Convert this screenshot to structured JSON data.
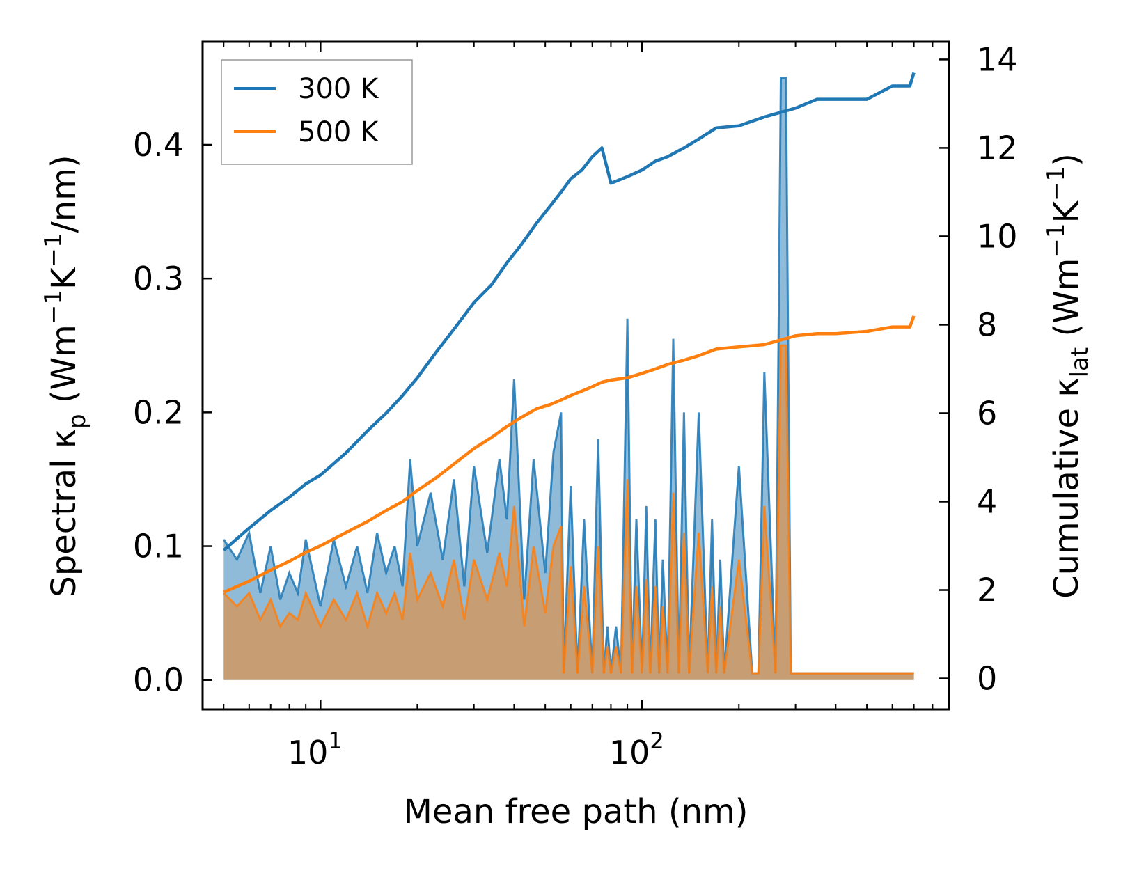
{
  "chart_data": {
    "type": "line+area",
    "title": "",
    "xlabel": "Mean free path (nm)",
    "ylabel_left": {
      "main": "Spectral κ",
      "sub": "p",
      "units_prefix": " (Wm",
      "sup1": "−1",
      "mid": "K",
      "sup2": "−1",
      "units_suffix": "/nm)"
    },
    "ylabel_right": {
      "main": "Cumulative κ",
      "sub": "lat",
      "units_prefix": " (Wm",
      "sup1": "−1",
      "mid": "K",
      "sup2": "−1",
      "units_suffix": ")"
    },
    "xscale": "log",
    "xlim": [
      4.3,
      900
    ],
    "ylim_left": [
      -0.022,
      0.477
    ],
    "ylim_right": [
      -0.7,
      14.4
    ],
    "x_ticks": [
      {
        "value": 10,
        "base": "10",
        "exp": "1"
      },
      {
        "value": 100,
        "base": "10",
        "exp": "2"
      }
    ],
    "y_left_ticks": [
      {
        "value": 0.0,
        "label": "0.0"
      },
      {
        "value": 0.1,
        "label": "0.1"
      },
      {
        "value": 0.2,
        "label": "0.2"
      },
      {
        "value": 0.3,
        "label": "0.3"
      },
      {
        "value": 0.4,
        "label": "0.4"
      }
    ],
    "y_right_ticks": [
      {
        "value": 0,
        "label": "0"
      },
      {
        "value": 2,
        "label": "2"
      },
      {
        "value": 4,
        "label": "4"
      },
      {
        "value": 6,
        "label": "6"
      },
      {
        "value": 8,
        "label": "8"
      },
      {
        "value": 10,
        "label": "10"
      },
      {
        "value": 12,
        "label": "12"
      },
      {
        "value": 14,
        "label": "14"
      }
    ],
    "legend": {
      "position": "upper-left",
      "entries": [
        {
          "label": "300 K",
          "color": "#1f77b4"
        },
        {
          "label": "500 K",
          "color": "#ff7f0e"
        }
      ]
    },
    "spectral": {
      "x": [
        5,
        5.5,
        6,
        6.5,
        7,
        7.5,
        8,
        8.5,
        9,
        10,
        11,
        12,
        13,
        14,
        15,
        16,
        17,
        18,
        19,
        20,
        22,
        24,
        26,
        28,
        30,
        33,
        36,
        38,
        40,
        43,
        46,
        50,
        53,
        56,
        57,
        60,
        63,
        66,
        70,
        73,
        76,
        78,
        80,
        83,
        86,
        90,
        93,
        96,
        100,
        103,
        106,
        110,
        113,
        116,
        120,
        125,
        130,
        135,
        140,
        150,
        160,
        165,
        170,
        175,
        180,
        200,
        220,
        230,
        240,
        260,
        270,
        280,
        290,
        300,
        320,
        340,
        360,
        500,
        560,
        600,
        680,
        700
      ],
      "series": [
        {
          "name": "300 K",
          "color": "#1f77b4",
          "values": [
            0.105,
            0.09,
            0.11,
            0.065,
            0.1,
            0.06,
            0.08,
            0.065,
            0.105,
            0.055,
            0.105,
            0.07,
            0.1,
            0.065,
            0.11,
            0.08,
            0.1,
            0.07,
            0.165,
            0.1,
            0.14,
            0.09,
            0.15,
            0.07,
            0.16,
            0.095,
            0.165,
            0.12,
            0.225,
            0.06,
            0.165,
            0.08,
            0.17,
            0.2,
            0.005,
            0.145,
            0.005,
            0.12,
            0.005,
            0.18,
            0.005,
            0.04,
            0.005,
            0.04,
            0.005,
            0.27,
            0.005,
            0.12,
            0.005,
            0.13,
            0.005,
            0.12,
            0.005,
            0.09,
            0.005,
            0.255,
            0.005,
            0.2,
            0.005,
            0.2,
            0.005,
            0.12,
            0.005,
            0.09,
            0.005,
            0.16,
            0.005,
            0.005,
            0.23,
            0.005,
            0.45,
            0.45,
            0.005,
            0.005,
            0.005,
            0.005,
            0.005,
            0.005,
            0.005,
            0.005,
            0.005,
            0.005
          ]
        },
        {
          "name": "500 K",
          "color": "#ff7f0e",
          "values": [
            0.065,
            0.055,
            0.065,
            0.045,
            0.06,
            0.04,
            0.05,
            0.045,
            0.065,
            0.04,
            0.06,
            0.045,
            0.065,
            0.04,
            0.065,
            0.05,
            0.065,
            0.045,
            0.095,
            0.06,
            0.08,
            0.055,
            0.09,
            0.045,
            0.09,
            0.06,
            0.095,
            0.07,
            0.13,
            0.04,
            0.1,
            0.05,
            0.1,
            0.115,
            0.005,
            0.085,
            0.005,
            0.07,
            0.005,
            0.1,
            0.005,
            0.025,
            0.005,
            0.025,
            0.005,
            0.15,
            0.005,
            0.07,
            0.005,
            0.075,
            0.005,
            0.07,
            0.005,
            0.055,
            0.005,
            0.14,
            0.005,
            0.11,
            0.005,
            0.11,
            0.005,
            0.07,
            0.005,
            0.055,
            0.005,
            0.09,
            0.005,
            0.005,
            0.13,
            0.005,
            0.25,
            0.25,
            0.005,
            0.005,
            0.005,
            0.005,
            0.005,
            0.005,
            0.005,
            0.005,
            0.005,
            0.005
          ]
        }
      ]
    },
    "cumulative": {
      "series": [
        {
          "name": "300 K",
          "color": "#1f77b4",
          "x": [
            5,
            6,
            7,
            8,
            9,
            10,
            12,
            14,
            16,
            18,
            20,
            23,
            26,
            30,
            34,
            38,
            42,
            47,
            52,
            56,
            60,
            65,
            70,
            75,
            80,
            90,
            100,
            110,
            120,
            135,
            150,
            170,
            200,
            240,
            300,
            350,
            400,
            500,
            600,
            680,
            700
          ],
          "values": [
            2.9,
            3.4,
            3.8,
            4.1,
            4.4,
            4.6,
            5.1,
            5.6,
            6.0,
            6.4,
            6.8,
            7.4,
            7.9,
            8.5,
            8.9,
            9.4,
            9.8,
            10.3,
            10.7,
            11.0,
            11.3,
            11.5,
            11.8,
            12.0,
            11.2,
            11.35,
            11.5,
            11.7,
            11.8,
            12.0,
            12.2,
            12.45,
            12.5,
            12.7,
            12.9,
            13.1,
            13.1,
            13.1,
            13.4,
            13.4,
            13.7
          ]
        },
        {
          "name": "500 K",
          "color": "#ff7f0e",
          "x": [
            5,
            6,
            7,
            8,
            9,
            10,
            12,
            14,
            16,
            18,
            20,
            23,
            26,
            30,
            34,
            38,
            42,
            47,
            52,
            56,
            60,
            65,
            70,
            75,
            80,
            90,
            100,
            110,
            120,
            135,
            150,
            170,
            200,
            240,
            300,
            350,
            400,
            500,
            600,
            680,
            700
          ],
          "values": [
            1.95,
            2.2,
            2.45,
            2.65,
            2.85,
            3.0,
            3.3,
            3.55,
            3.8,
            4.0,
            4.25,
            4.55,
            4.85,
            5.2,
            5.45,
            5.7,
            5.9,
            6.1,
            6.2,
            6.3,
            6.4,
            6.5,
            6.6,
            6.7,
            6.75,
            6.8,
            6.9,
            7.0,
            7.1,
            7.2,
            7.3,
            7.45,
            7.5,
            7.55,
            7.75,
            7.8,
            7.8,
            7.85,
            7.95,
            7.95,
            8.2
          ]
        }
      ]
    }
  }
}
